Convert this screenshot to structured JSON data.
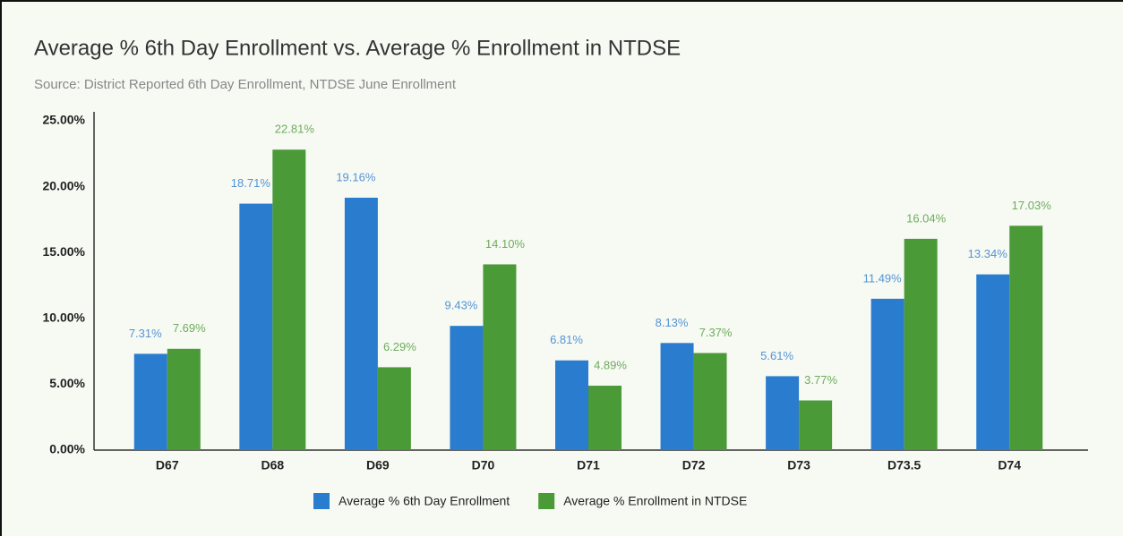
{
  "chart_data": {
    "type": "bar",
    "title": "Average % 6th Day Enrollment vs. Average % Enrollment in NTDSE",
    "subtitle": "Source: District Reported 6th Day Enrollment, NTDSE June Enrollment",
    "categories": [
      "D67",
      "D68",
      "D69",
      "D70",
      "D71",
      "D72",
      "D73",
      "D73.5",
      "D74"
    ],
    "series": [
      {
        "name": "Average % 6th Day Enrollment",
        "color": "#2a7ccf",
        "values": [
          7.31,
          18.71,
          19.16,
          9.43,
          6.81,
          8.13,
          5.61,
          11.49,
          13.34
        ],
        "value_labels": [
          "7.31%",
          "18.71%",
          "19.16%",
          "9.43%",
          "6.81%",
          "8.13%",
          "5.61%",
          "11.49%",
          "13.34%"
        ]
      },
      {
        "name": "Average % Enrollment in NTDSE",
        "color": "#4b9a38",
        "values": [
          7.69,
          22.81,
          6.29,
          14.1,
          4.89,
          7.37,
          3.77,
          16.04,
          17.03
        ],
        "value_labels": [
          "7.69%",
          "22.81%",
          "6.29%",
          "14.10%",
          "4.89%",
          "7.37%",
          "3.77%",
          "16.04%",
          "17.03%"
        ]
      }
    ],
    "ylim": [
      0,
      25
    ],
    "yticks": [
      {
        "value": 0,
        "label": "0.00%"
      },
      {
        "value": 5,
        "label": "5.00%"
      },
      {
        "value": 10,
        "label": "10.00%"
      },
      {
        "value": 15,
        "label": "15.00%"
      },
      {
        "value": 20,
        "label": "20.00%"
      },
      {
        "value": 25,
        "label": "25.00%"
      }
    ],
    "grid": false,
    "legend": "bottom"
  }
}
